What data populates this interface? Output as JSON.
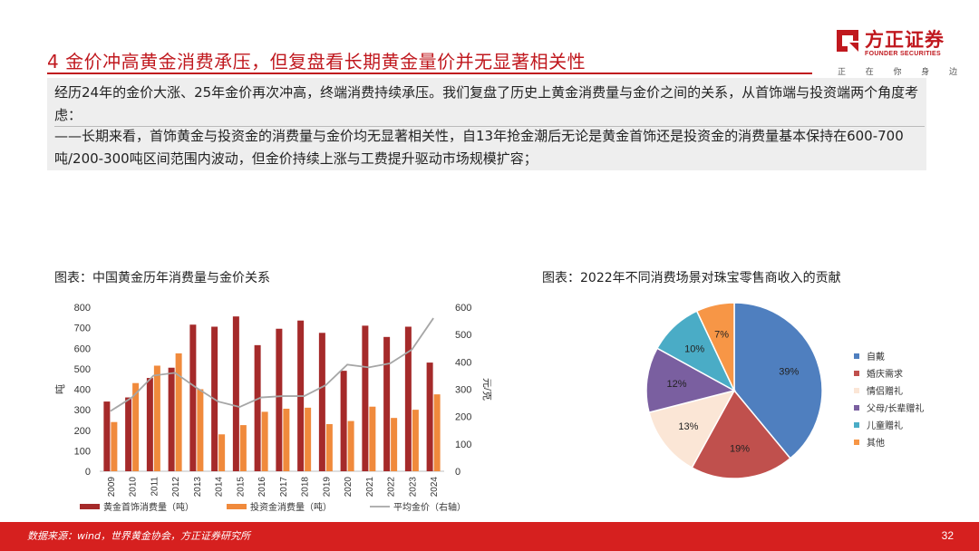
{
  "header": {
    "title": "4 金价冲高黄金消费承压，但复盘看长期黄金量价并无显著相关性",
    "logo_cn": "方正证券",
    "logo_en": "FOUNDER SECURITIES",
    "slogan": [
      "正",
      "在",
      "你",
      "身",
      "边"
    ]
  },
  "summary": {
    "paragraph1": "经历24年的金价大涨、25年金价再次冲高，终端消费持续承压。我们复盘了历史上黄金消费量与金价之间的关系，从首饰端与投资端两个角度考虑：",
    "paragraph2": "——长期来看，首饰黄金与投资金的消费量与金价均无显著相关性，自13年抢金潮后无论是黄金首饰还是投资金的消费量基本保持在600-700吨/200-300吨区间范围内波动，但金价持续上涨与工费提升驱动市场规模扩容；"
  },
  "colors": {
    "brand_red": "#c0181e",
    "jewelry": "#a52a2a",
    "investment": "#f08a3c",
    "price_line": "#a6a6a6"
  },
  "chart_data": [
    {
      "type": "bar",
      "caption": "图表：中国黄金历年消费量与金价关系",
      "categories": [
        "2009",
        "2010",
        "2011",
        "2012",
        "2013",
        "2014",
        "2015",
        "2016",
        "2017",
        "2018",
        "2019",
        "2020",
        "2021",
        "2022",
        "2023",
        "2024"
      ],
      "series": [
        {
          "name": "黄金首饰消费量（吨）",
          "type": "bar",
          "axis": "left",
          "values": [
            340,
            360,
            455,
            505,
            715,
            705,
            755,
            615,
            695,
            735,
            675,
            490,
            710,
            655,
            705,
            530
          ]
        },
        {
          "name": "投资金消费量（吨）",
          "type": "bar",
          "axis": "left",
          "values": [
            240,
            430,
            515,
            575,
            400,
            180,
            225,
            290,
            305,
            310,
            230,
            245,
            315,
            260,
            300,
            375
          ]
        },
        {
          "name": "平均金价（右轴）",
          "type": "line",
          "axis": "right",
          "values": [
            220,
            270,
            350,
            360,
            305,
            255,
            235,
            270,
            275,
            275,
            315,
            390,
            380,
            395,
            445,
            560
          ]
        }
      ],
      "ylabel": "吨",
      "ylabel_right": "元/克",
      "ylim": [
        0,
        800
      ],
      "yticks": [
        0,
        100,
        200,
        300,
        400,
        500,
        600,
        700,
        800
      ],
      "ylim_right": [
        0,
        600
      ],
      "yticks_right": [
        0,
        100,
        200,
        300,
        400,
        500,
        600
      ],
      "grid": false,
      "legend_position": "bottom"
    },
    {
      "type": "pie",
      "caption": "图表：2022年不同消费场景对珠宝零售商收入的贡献",
      "labels": [
        "自戴",
        "婚庆需求",
        "情侣赠礼",
        "父母/长辈赠礼",
        "儿童赠礼",
        "其他"
      ],
      "values": [
        39,
        19,
        13,
        12,
        10,
        7
      ],
      "value_labels": [
        "39%",
        "19%",
        "13%",
        "12%",
        "10%",
        "7%"
      ],
      "colors": [
        "#4f7fbf",
        "#c0504d",
        "#fbe6d6",
        "#7a5fa0",
        "#4aacc6",
        "#f79646"
      ],
      "legend_position": "right"
    }
  ],
  "footer": {
    "source": "数据来源：wind，世界黄金协会，方正证券研究所",
    "page": "32"
  }
}
